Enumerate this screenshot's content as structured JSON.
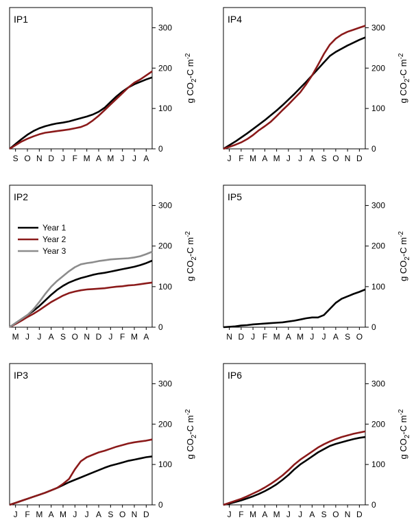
{
  "colors": {
    "year1": "#000000",
    "year2": "#8b1a1a",
    "year3": "#8c8c8c",
    "frame": "#000000"
  },
  "legend_items": [
    {
      "label": "Year 1",
      "color": "#000000"
    },
    {
      "label": "Year 2",
      "color": "#8b1a1a"
    },
    {
      "label": "Year 3",
      "color": "#8c8c8c"
    }
  ],
  "chart_data": [
    {
      "type": "line",
      "title": "IP1",
      "ylabel": "g CO2-C m-2",
      "ylim": [
        0,
        350
      ],
      "yticks": [
        0,
        100,
        200,
        300
      ],
      "xlim": [
        0,
        12
      ],
      "months": [
        "S",
        "O",
        "N",
        "D",
        "J",
        "F",
        "M",
        "A",
        "M",
        "J",
        "J",
        "A"
      ],
      "series": [
        {
          "color": "#000000",
          "x": [
            0,
            0.5,
            1,
            1.5,
            2,
            2.5,
            3,
            3.5,
            4,
            4.5,
            5,
            5.5,
            6,
            6.5,
            7,
            7.5,
            8,
            8.5,
            9,
            9.5,
            10,
            10.5,
            11,
            11.5,
            12
          ],
          "y": [
            0,
            12,
            24,
            35,
            44,
            51,
            56,
            60,
            63,
            65,
            68,
            72,
            76,
            80,
            85,
            92,
            102,
            116,
            130,
            142,
            152,
            160,
            166,
            172,
            177
          ]
        },
        {
          "color": "#8b1a1a",
          "x": [
            0,
            0.5,
            1,
            1.5,
            2,
            2.5,
            3,
            3.5,
            4,
            4.5,
            5,
            5.5,
            6,
            6.5,
            7,
            7.5,
            8,
            8.5,
            9,
            9.5,
            10,
            10.5,
            11,
            11.5,
            12
          ],
          "y": [
            0,
            9,
            18,
            25,
            31,
            36,
            40,
            42,
            44,
            46,
            48,
            51,
            54,
            60,
            70,
            82,
            96,
            110,
            124,
            138,
            152,
            164,
            172,
            182,
            192
          ]
        }
      ]
    },
    {
      "type": "line",
      "title": "IP4",
      "ylabel": "g CO2-C m-2",
      "ylim": [
        0,
        350
      ],
      "yticks": [
        0,
        100,
        200,
        300
      ],
      "xlim": [
        0,
        12
      ],
      "months": [
        "J",
        "F",
        "M",
        "A",
        "M",
        "J",
        "J",
        "A",
        "S",
        "O",
        "N",
        "D"
      ],
      "series": [
        {
          "color": "#000000",
          "x": [
            0,
            0.5,
            1,
            1.5,
            2,
            2.5,
            3,
            3.5,
            4,
            4.5,
            5,
            5.5,
            6,
            6.5,
            7,
            7.5,
            8,
            8.5,
            9,
            9.5,
            10,
            10.5,
            11,
            11.5,
            12
          ],
          "y": [
            0,
            9,
            18,
            28,
            38,
            49,
            60,
            71,
            83,
            95,
            108,
            122,
            136,
            151,
            166,
            182,
            198,
            214,
            230,
            240,
            248,
            256,
            263,
            270,
            276
          ]
        },
        {
          "color": "#8b1a1a",
          "x": [
            0,
            0.5,
            1,
            1.5,
            2,
            2.5,
            3,
            3.5,
            4,
            4.5,
            5,
            5.5,
            6,
            6.5,
            7,
            7.5,
            8,
            8.5,
            9,
            9.5,
            10,
            10.5,
            11,
            11.5,
            12
          ],
          "y": [
            0,
            5,
            10,
            16,
            24,
            34,
            46,
            56,
            67,
            81,
            96,
            110,
            125,
            140,
            160,
            182,
            208,
            235,
            258,
            273,
            283,
            290,
            295,
            300,
            305
          ]
        }
      ]
    },
    {
      "type": "line",
      "title": "IP2",
      "ylabel": "g CO2-C m-2",
      "ylim": [
        0,
        350
      ],
      "yticks": [
        0,
        100,
        200,
        300
      ],
      "xlim": [
        0,
        12
      ],
      "months": [
        "M",
        "J",
        "J",
        "A",
        "S",
        "O",
        "N",
        "D",
        "J",
        "F",
        "M",
        "A"
      ],
      "series": [
        {
          "name": "Year 1",
          "color": "#000000",
          "x": [
            0,
            0.5,
            1,
            1.5,
            2,
            2.5,
            3,
            3.5,
            4,
            4.5,
            5,
            5.5,
            6,
            6.5,
            7,
            7.5,
            8,
            8.5,
            9,
            9.5,
            10,
            10.5,
            11,
            11.5,
            12
          ],
          "y": [
            0,
            10,
            20,
            30,
            40,
            52,
            66,
            80,
            92,
            102,
            110,
            116,
            121,
            125,
            129,
            132,
            134,
            137,
            140,
            143,
            146,
            149,
            153,
            158,
            164
          ]
        },
        {
          "name": "Year 2",
          "color": "#8b1a1a",
          "x": [
            0,
            0.5,
            1,
            1.5,
            2,
            2.5,
            3,
            3.5,
            4,
            4.5,
            5,
            5.5,
            6,
            6.5,
            7,
            7.5,
            8,
            8.5,
            9,
            9.5,
            10,
            10.5,
            11,
            11.5,
            12
          ],
          "y": [
            0,
            8,
            16,
            25,
            33,
            42,
            52,
            62,
            70,
            78,
            84,
            88,
            91,
            93,
            94,
            95,
            96,
            98,
            100,
            101,
            103,
            104,
            106,
            108,
            110
          ]
        },
        {
          "name": "Year 3",
          "color": "#8c8c8c",
          "x": [
            0,
            0.5,
            1,
            1.5,
            2,
            2.5,
            3,
            3.5,
            4,
            4.5,
            5,
            5.5,
            6,
            6.5,
            7,
            7.5,
            8,
            8.5,
            9,
            9.5,
            10,
            10.5,
            11,
            11.5,
            12
          ],
          "y": [
            0,
            10,
            20,
            30,
            44,
            62,
            82,
            100,
            114,
            126,
            138,
            148,
            155,
            158,
            160,
            163,
            165,
            167,
            168,
            169,
            170,
            172,
            175,
            180,
            186
          ]
        }
      ]
    },
    {
      "type": "line",
      "title": "IP5",
      "ylabel": "g CO2-C m-2",
      "ylim": [
        0,
        350
      ],
      "yticks": [
        0,
        100,
        200,
        300
      ],
      "xlim": [
        0,
        12
      ],
      "months": [
        "N",
        "D",
        "J",
        "F",
        "M",
        "A",
        "M",
        "J",
        "J",
        "A",
        "S",
        "O"
      ],
      "series": [
        {
          "color": "#000000",
          "x": [
            0,
            0.5,
            1,
            1.5,
            2,
            2.5,
            3,
            3.5,
            4,
            4.5,
            5,
            5.5,
            6,
            6.5,
            7,
            7.5,
            8,
            8.5,
            9,
            9.5,
            10,
            10.5,
            11,
            11.5,
            12
          ],
          "y": [
            0,
            1,
            2,
            4,
            5,
            7,
            8,
            9,
            10,
            11,
            12,
            14,
            16,
            19,
            22,
            24,
            24,
            30,
            45,
            60,
            70,
            76,
            82,
            87,
            93
          ]
        }
      ]
    },
    {
      "type": "line",
      "title": "IP3",
      "ylabel": "g CO2-C m-2",
      "ylim": [
        0,
        350
      ],
      "yticks": [
        0,
        100,
        200,
        300
      ],
      "xlim": [
        0,
        12
      ],
      "months": [
        "J",
        "F",
        "M",
        "A",
        "M",
        "J",
        "J",
        "A",
        "S",
        "O",
        "N",
        "D"
      ],
      "series": [
        {
          "color": "#000000",
          "x": [
            0,
            0.5,
            1,
            1.5,
            2,
            2.5,
            3,
            3.5,
            4,
            4.5,
            5,
            5.5,
            6,
            6.5,
            7,
            7.5,
            8,
            8.5,
            9,
            9.5,
            10,
            10.5,
            11,
            11.5,
            12
          ],
          "y": [
            0,
            5,
            10,
            15,
            20,
            25,
            30,
            36,
            42,
            49,
            56,
            62,
            68,
            74,
            80,
            86,
            92,
            97,
            101,
            105,
            109,
            112,
            115,
            118,
            120
          ]
        },
        {
          "color": "#8b1a1a",
          "x": [
            0,
            0.5,
            1,
            1.5,
            2,
            2.5,
            3,
            3.5,
            4,
            4.5,
            5,
            5.5,
            6,
            6.5,
            7,
            7.5,
            8,
            8.5,
            9,
            9.5,
            10,
            10.5,
            11,
            11.5,
            12
          ],
          "y": [
            0,
            5,
            10,
            15,
            20,
            25,
            30,
            36,
            42,
            52,
            64,
            88,
            108,
            118,
            124,
            130,
            134,
            139,
            144,
            148,
            152,
            155,
            157,
            159,
            162
          ]
        }
      ]
    },
    {
      "type": "line",
      "title": "IP6",
      "ylabel": "g CO2-C m-2",
      "ylim": [
        0,
        350
      ],
      "yticks": [
        0,
        100,
        200,
        300
      ],
      "xlim": [
        0,
        12
      ],
      "months": [
        "J",
        "F",
        "M",
        "A",
        "M",
        "J",
        "J",
        "A",
        "S",
        "O",
        "N",
        "D"
      ],
      "series": [
        {
          "color": "#000000",
          "x": [
            0,
            0.5,
            1,
            1.5,
            2,
            2.5,
            3,
            3.5,
            4,
            4.5,
            5,
            5.5,
            6,
            6.5,
            7,
            7.5,
            8,
            8.5,
            9,
            9.5,
            10,
            10.5,
            11,
            11.5,
            12
          ],
          "y": [
            0,
            3,
            7,
            11,
            16,
            21,
            27,
            34,
            42,
            51,
            62,
            74,
            88,
            100,
            110,
            120,
            130,
            138,
            146,
            151,
            155,
            159,
            163,
            166,
            168
          ]
        },
        {
          "color": "#8b1a1a",
          "x": [
            0,
            0.5,
            1,
            1.5,
            2,
            2.5,
            3,
            3.5,
            4,
            4.5,
            5,
            5.5,
            6,
            6.5,
            7,
            7.5,
            8,
            8.5,
            9,
            9.5,
            10,
            10.5,
            11,
            11.5,
            12
          ],
          "y": [
            0,
            5,
            10,
            15,
            21,
            28,
            35,
            43,
            52,
            62,
            73,
            86,
            100,
            112,
            122,
            132,
            142,
            150,
            157,
            163,
            168,
            172,
            176,
            179,
            182
          ]
        }
      ]
    }
  ]
}
